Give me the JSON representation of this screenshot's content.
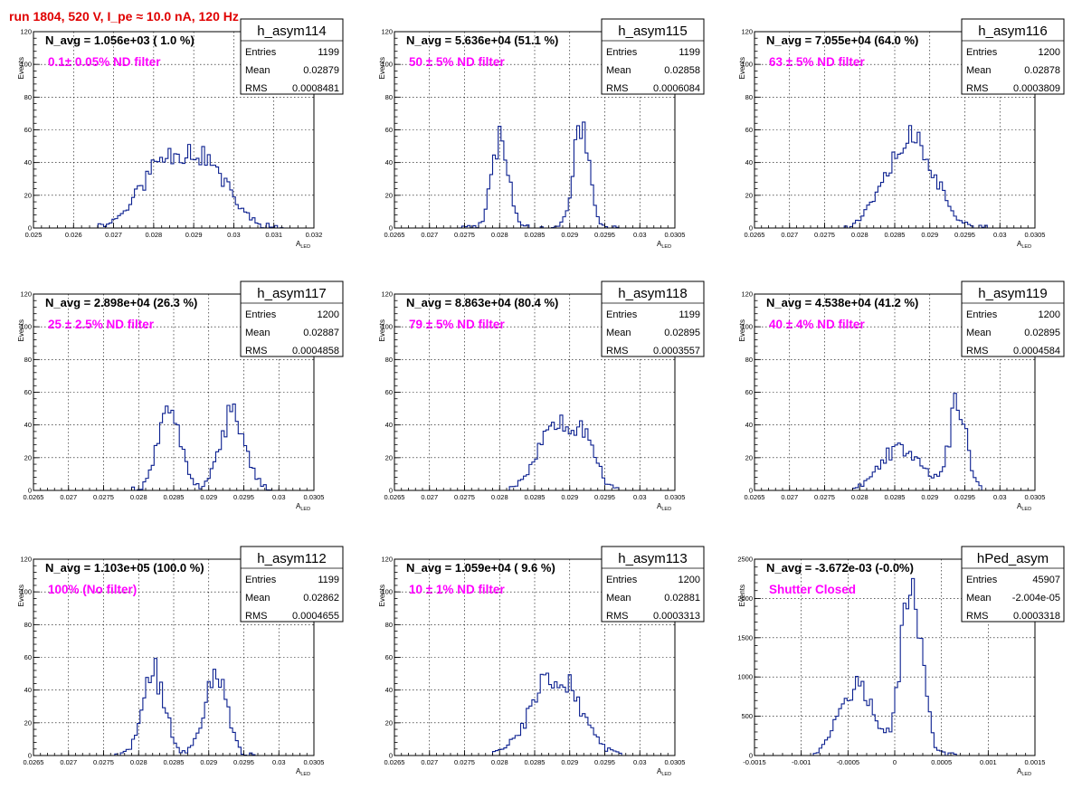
{
  "page_title": "run 1804,   520 V, I_pe ≈ 10.0 nA, 120 Hz",
  "chart_data": [
    {
      "type": "histogram",
      "name": "h_asym114",
      "navg": "N_avg = 1.056e+03 ( 1.0 %)",
      "filter_label": "0.1± 0.05% ND filter",
      "stats": [
        {
          "label": "Entries",
          "value": "1199"
        },
        {
          "label": "Mean",
          "value": "0.02879"
        },
        {
          "label": "RMS",
          "value": "0.0008481"
        }
      ],
      "xlabel": "A",
      "xlabel_sub": "LED",
      "ylabel": "Events",
      "xlim": [
        0.025,
        0.032
      ],
      "ylim": [
        0,
        120
      ],
      "xticks": [
        0.025,
        0.026,
        0.027,
        0.028,
        0.029,
        0.03,
        0.031,
        0.032
      ],
      "xtick_labels": [
        "0.025",
        "0.026",
        "0.027",
        "0.028",
        "0.029",
        "0.03",
        "0.031",
        "0.032"
      ],
      "yticks": [
        0,
        20,
        40,
        60,
        80,
        100,
        120
      ],
      "peaks": [
        {
          "c": 0.0282,
          "s": 0.0006,
          "h": 36
        },
        {
          "c": 0.0293,
          "s": 0.0006,
          "h": 36
        }
      ],
      "x_range": [
        0.0265,
        0.0313
      ],
      "seed": 11
    },
    {
      "type": "histogram",
      "name": "h_asym115",
      "navg": "N_avg = 5.636e+04 (51.1 %)",
      "filter_label": "50 ± 5% ND filter",
      "stats": [
        {
          "label": "Entries",
          "value": "1199"
        },
        {
          "label": "Mean",
          "value": "0.02858"
        },
        {
          "label": "RMS",
          "value": "0.0006084"
        }
      ],
      "xlabel": "A",
      "xlabel_sub": "LED",
      "ylabel": "Events",
      "xlim": [
        0.0265,
        0.0305
      ],
      "ylim": [
        0,
        120
      ],
      "xticks": [
        0.0265,
        0.027,
        0.0275,
        0.028,
        0.0285,
        0.029,
        0.0295,
        0.03,
        0.0305
      ],
      "xtick_labels": [
        "0.0265",
        "0.027",
        "0.0275",
        "0.028",
        "0.0285",
        "0.029",
        "0.0295",
        "0.03",
        "0.0305"
      ],
      "yticks": [
        0,
        20,
        40,
        60,
        80,
        100,
        120
      ],
      "peaks": [
        {
          "c": 0.02801,
          "s": 0.00012,
          "h": 55
        },
        {
          "c": 0.02917,
          "s": 0.00011,
          "h": 65
        }
      ],
      "x_range": [
        0.0274,
        0.0297
      ],
      "seed": 23
    },
    {
      "type": "histogram",
      "name": "h_asym116",
      "navg": "N_avg = 7.055e+04 (64.0 %)",
      "filter_label": "63 ± 5% ND filter",
      "stats": [
        {
          "label": "Entries",
          "value": "1200"
        },
        {
          "label": "Mean",
          "value": "0.02878"
        },
        {
          "label": "RMS",
          "value": "0.0003809"
        }
      ],
      "xlabel": "A",
      "xlabel_sub": "LED",
      "ylabel": "Events",
      "xlim": [
        0.0265,
        0.0305
      ],
      "ylim": [
        0,
        120
      ],
      "xticks": [
        0.0265,
        0.027,
        0.0275,
        0.028,
        0.0285,
        0.029,
        0.0295,
        0.03,
        0.0305
      ],
      "xtick_labels": [
        "0.0265",
        "0.027",
        "0.0275",
        "0.028",
        "0.0285",
        "0.029",
        "0.0295",
        "0.03",
        "0.0305"
      ],
      "yticks": [
        0,
        20,
        40,
        60,
        80,
        100,
        120
      ],
      "peaks": [
        {
          "c": 0.02877,
          "s": 0.0003,
          "h": 55
        },
        {
          "c": 0.0283,
          "s": 0.0002,
          "h": 12
        }
      ],
      "x_range": [
        0.0278,
        0.0298
      ],
      "seed": 37
    },
    {
      "type": "histogram",
      "name": "h_asym117",
      "navg": "N_avg = 2.898e+04 (26.3 %)",
      "filter_label": "25 ± 2.5% ND filter",
      "stats": [
        {
          "label": "Entries",
          "value": "1200"
        },
        {
          "label": "Mean",
          "value": "0.02887"
        },
        {
          "label": "RMS",
          "value": "0.0004858"
        }
      ],
      "xlabel": "A",
      "xlabel_sub": "LED",
      "ylabel": "Events",
      "xlim": [
        0.0265,
        0.0305
      ],
      "ylim": [
        0,
        120
      ],
      "xticks": [
        0.0265,
        0.027,
        0.0275,
        0.028,
        0.0285,
        0.029,
        0.0295,
        0.03,
        0.0305
      ],
      "xtick_labels": [
        "0.0265",
        "0.027",
        "0.0275",
        "0.028",
        "0.0285",
        "0.029",
        "0.0295",
        "0.03",
        "0.0305"
      ],
      "yticks": [
        0,
        20,
        40,
        60,
        80,
        100,
        120
      ],
      "peaks": [
        {
          "c": 0.02844,
          "s": 0.00016,
          "h": 48
        },
        {
          "c": 0.02935,
          "s": 0.00018,
          "h": 48
        }
      ],
      "x_range": [
        0.0279,
        0.0299
      ],
      "seed": 41
    },
    {
      "type": "histogram",
      "name": "h_asym118",
      "navg": "N_avg = 8.863e+04 (80.4 %)",
      "filter_label": "79 ± 5% ND filter",
      "stats": [
        {
          "label": "Entries",
          "value": "1199"
        },
        {
          "label": "Mean",
          "value": "0.02895"
        },
        {
          "label": "RMS",
          "value": "0.0003557"
        }
      ],
      "xlabel": "A",
      "xlabel_sub": "LED",
      "ylabel": "Events",
      "xlim": [
        0.0265,
        0.0305
      ],
      "ylim": [
        0,
        120
      ],
      "xticks": [
        0.0265,
        0.027,
        0.0275,
        0.028,
        0.0285,
        0.029,
        0.0295,
        0.03,
        0.0305
      ],
      "xtick_labels": [
        "0.0265",
        "0.027",
        "0.0275",
        "0.028",
        "0.0285",
        "0.029",
        "0.0295",
        "0.03",
        "0.0305"
      ],
      "yticks": [
        0,
        20,
        40,
        60,
        80,
        100,
        120
      ],
      "peaks": [
        {
          "c": 0.02885,
          "s": 0.00028,
          "h": 45
        },
        {
          "c": 0.02925,
          "s": 0.00013,
          "h": 20
        }
      ],
      "x_range": [
        0.0281,
        0.0297
      ],
      "seed": 53
    },
    {
      "type": "histogram",
      "name": "h_asym119",
      "navg": "N_avg = 4.538e+04 (41.2 %)",
      "filter_label": "40 ± 4% ND filter",
      "stats": [
        {
          "label": "Entries",
          "value": "1200"
        },
        {
          "label": "Mean",
          "value": "0.02895"
        },
        {
          "label": "RMS",
          "value": "0.0004584"
        }
      ],
      "xlabel": "A",
      "xlabel_sub": "LED",
      "ylabel": "Events",
      "xlim": [
        0.0265,
        0.0305
      ],
      "ylim": [
        0,
        120
      ],
      "xticks": [
        0.0265,
        0.027,
        0.0275,
        0.028,
        0.0285,
        0.029,
        0.0295,
        0.03,
        0.0305
      ],
      "xtick_labels": [
        "0.0265",
        "0.027",
        "0.0275",
        "0.028",
        "0.0285",
        "0.029",
        "0.0295",
        "0.03",
        "0.0305"
      ],
      "yticks": [
        0,
        20,
        40,
        60,
        80,
        100,
        120
      ],
      "peaks": [
        {
          "c": 0.0286,
          "s": 0.0003,
          "h": 27
        },
        {
          "c": 0.0294,
          "s": 0.00012,
          "h": 52
        }
      ],
      "x_range": [
        0.0279,
        0.02975
      ],
      "seed": 67
    },
    {
      "type": "histogram",
      "name": "h_asym112",
      "navg": "N_avg = 1.103e+05 (100.0 %)",
      "filter_label": "100% (No filter)",
      "stats": [
        {
          "label": "Entries",
          "value": "1199"
        },
        {
          "label": "Mean",
          "value": "0.02862"
        },
        {
          "label": "RMS",
          "value": "0.0004655"
        }
      ],
      "xlabel": "A",
      "xlabel_sub": "LED",
      "ylabel": "Events",
      "xlim": [
        0.0265,
        0.0305
      ],
      "ylim": [
        0,
        120
      ],
      "xticks": [
        0.0265,
        0.027,
        0.0275,
        0.028,
        0.0285,
        0.029,
        0.0295,
        0.03,
        0.0305
      ],
      "xtick_labels": [
        "0.0265",
        "0.027",
        "0.0275",
        "0.028",
        "0.0285",
        "0.029",
        "0.0295",
        "0.03",
        "0.0305"
      ],
      "yticks": [
        0,
        20,
        40,
        60,
        80,
        100,
        120
      ],
      "peaks": [
        {
          "c": 0.02822,
          "s": 0.00016,
          "h": 50
        },
        {
          "c": 0.0291,
          "s": 0.00016,
          "h": 50
        }
      ],
      "x_range": [
        0.02765,
        0.02965
      ],
      "seed": 71
    },
    {
      "type": "histogram",
      "name": "h_asym113",
      "navg": "N_avg = 1.059e+04 ( 9.6 %)",
      "filter_label": "10 ± 1% ND filter",
      "stats": [
        {
          "label": "Entries",
          "value": "1200"
        },
        {
          "label": "Mean",
          "value": "0.02881"
        },
        {
          "label": "RMS",
          "value": "0.0003313"
        }
      ],
      "xlabel": "A",
      "xlabel_sub": "LED",
      "ylabel": "Events",
      "xlim": [
        0.0265,
        0.0305
      ],
      "ylim": [
        0,
        120
      ],
      "xticks": [
        0.0265,
        0.027,
        0.0275,
        0.028,
        0.0285,
        0.029,
        0.0295,
        0.03,
        0.0305
      ],
      "xtick_labels": [
        "0.0265",
        "0.027",
        "0.0275",
        "0.028",
        "0.0285",
        "0.029",
        "0.0295",
        "0.03",
        "0.0305"
      ],
      "yticks": [
        0,
        20,
        40,
        60,
        80,
        100,
        120
      ],
      "peaks": [
        {
          "c": 0.0288,
          "s": 0.00033,
          "h": 52
        }
      ],
      "x_range": [
        0.0279,
        0.02975
      ],
      "seed": 83
    },
    {
      "type": "histogram",
      "name": "hPed_asym",
      "navg": "N_avg = -3.672e-03 (-0.0%)",
      "filter_label": "Shutter Closed",
      "stats": [
        {
          "label": "Entries",
          "value": "45907"
        },
        {
          "label": "Mean",
          "value": "-2.004e-05"
        },
        {
          "label": "RMS",
          "value": "0.0003318"
        }
      ],
      "xlabel": "A",
      "xlabel_sub": "LED",
      "ylabel": "Events",
      "xlim": [
        -0.0015,
        0.0015
      ],
      "ylim": [
        0,
        2500
      ],
      "xticks": [
        -0.0015,
        -0.001,
        -0.0005,
        0,
        0.0005,
        0.001,
        0.0015
      ],
      "xtick_labels": [
        "-0.0015",
        "-0.001",
        "-0.0005",
        "0",
        "0.0005",
        "0.001",
        "0.0015"
      ],
      "yticks": [
        0,
        500,
        1000,
        1500,
        2000,
        2500
      ],
      "peaks": [
        {
          "c": -0.00042,
          "s": 0.00018,
          "h": 930
        },
        {
          "c": 0.00018,
          "s": 0.00011,
          "h": 2250
        }
      ],
      "x_range": [
        -0.0009,
        0.00065
      ],
      "seed": 97
    }
  ]
}
